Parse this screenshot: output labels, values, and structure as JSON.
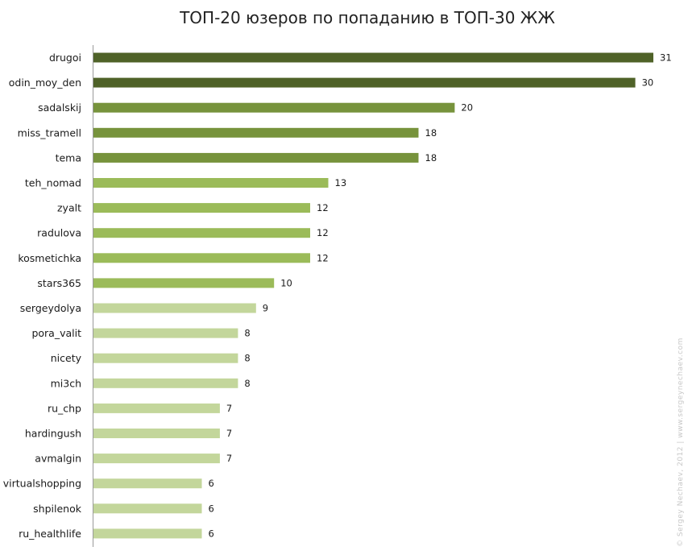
{
  "chart_data": {
    "type": "bar",
    "orientation": "horizontal",
    "title": "ТОП-20 юзеров по попаданию в ТОП-30 ЖЖ",
    "categories": [
      "drugoi",
      "odin_moy_den",
      "sadalskij",
      "miss_tramell",
      "tema",
      "teh_nomad",
      "zyalt",
      "radulova",
      "kosmetichka",
      "stars365",
      "sergeydolya",
      "pora_valit",
      "nicety",
      "mi3ch",
      "ru_chp",
      "hardingush",
      "avmalgin",
      "virtualshopping",
      "shpilenok",
      "ru_healthlife"
    ],
    "values": [
      31,
      30,
      20,
      18,
      18,
      13,
      12,
      12,
      12,
      10,
      9,
      8,
      8,
      8,
      7,
      7,
      7,
      6,
      6,
      6
    ],
    "xlim": [
      0,
      31
    ],
    "grid": false,
    "legend": "none",
    "colors": {
      "tier1": "#4f6228",
      "tier2": "#77933c",
      "tier3": "#9bbb59",
      "tier4": "#c3d69b"
    },
    "tier_of_bar": [
      1,
      1,
      2,
      2,
      2,
      3,
      3,
      3,
      3,
      3,
      4,
      4,
      4,
      4,
      4,
      4,
      4,
      4,
      4,
      4
    ]
  },
  "watermark": "© Sergey Nechaev, 2012 | www.sergeynechaev.com"
}
